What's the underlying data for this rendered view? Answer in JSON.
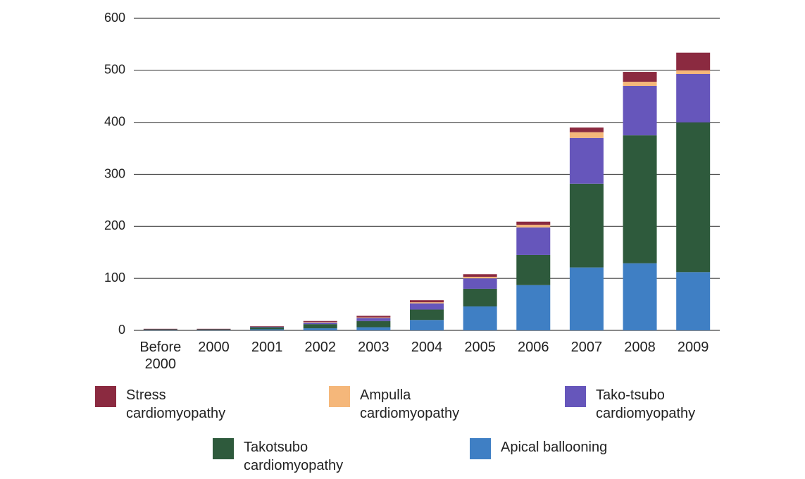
{
  "chart_data": {
    "type": "stacked_bar",
    "categories": [
      "Before 2000",
      "2000",
      "2001",
      "2002",
      "2003",
      "2004",
      "2005",
      "2006",
      "2007",
      "2008",
      "2009"
    ],
    "series": [
      {
        "name": "Stress cardiomyopathy",
        "color": "#8b2a40",
        "values": [
          1,
          1,
          1,
          2,
          3,
          4,
          5,
          6,
          9,
          19,
          34
        ]
      },
      {
        "name": "Ampulla cardiomyopathy",
        "color": "#f5b77a",
        "values": [
          0,
          0,
          0,
          1,
          1,
          2,
          3,
          5,
          11,
          8,
          7
        ]
      },
      {
        "name": "Tako-tsubo cardiomyopathy",
        "color": "#6656bb",
        "values": [
          0,
          0,
          1,
          3,
          6,
          12,
          20,
          53,
          88,
          95,
          93
        ]
      },
      {
        "name": "Takotsubo cardiomyopathy",
        "color": "#2e5a3c",
        "values": [
          1,
          1,
          4,
          8,
          12,
          20,
          34,
          58,
          161,
          246,
          288
        ]
      },
      {
        "name": "Apical ballooning",
        "color": "#3f7fc4",
        "values": [
          1,
          1,
          2,
          4,
          6,
          20,
          46,
          87,
          121,
          129,
          112
        ]
      }
    ],
    "ylim": [
      0,
      600
    ],
    "yticks": [
      0,
      100,
      200,
      300,
      400,
      500,
      600
    ],
    "grid": true
  }
}
